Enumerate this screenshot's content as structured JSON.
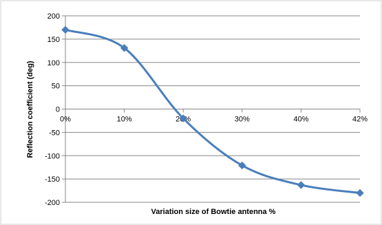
{
  "chart_data": {
    "type": "line",
    "title": "",
    "xlabel": "Variation size of Bowtie antenna %",
    "ylabel": "Reflection coefficient  (deg)",
    "categories": [
      "0%",
      "10%",
      "20%",
      "30%",
      "40%",
      "42%"
    ],
    "series": [
      {
        "values": [
          170,
          131,
          -20,
          -121,
          -163,
          -180
        ],
        "color": "#4a7ebb",
        "marker": "diamond",
        "smooth": true
      }
    ],
    "ylim": [
      -200,
      200
    ],
    "yticks": [
      -200,
      -150,
      -100,
      -50,
      0,
      50,
      100,
      150,
      200
    ],
    "grid": "horizontal",
    "legend": "none"
  }
}
